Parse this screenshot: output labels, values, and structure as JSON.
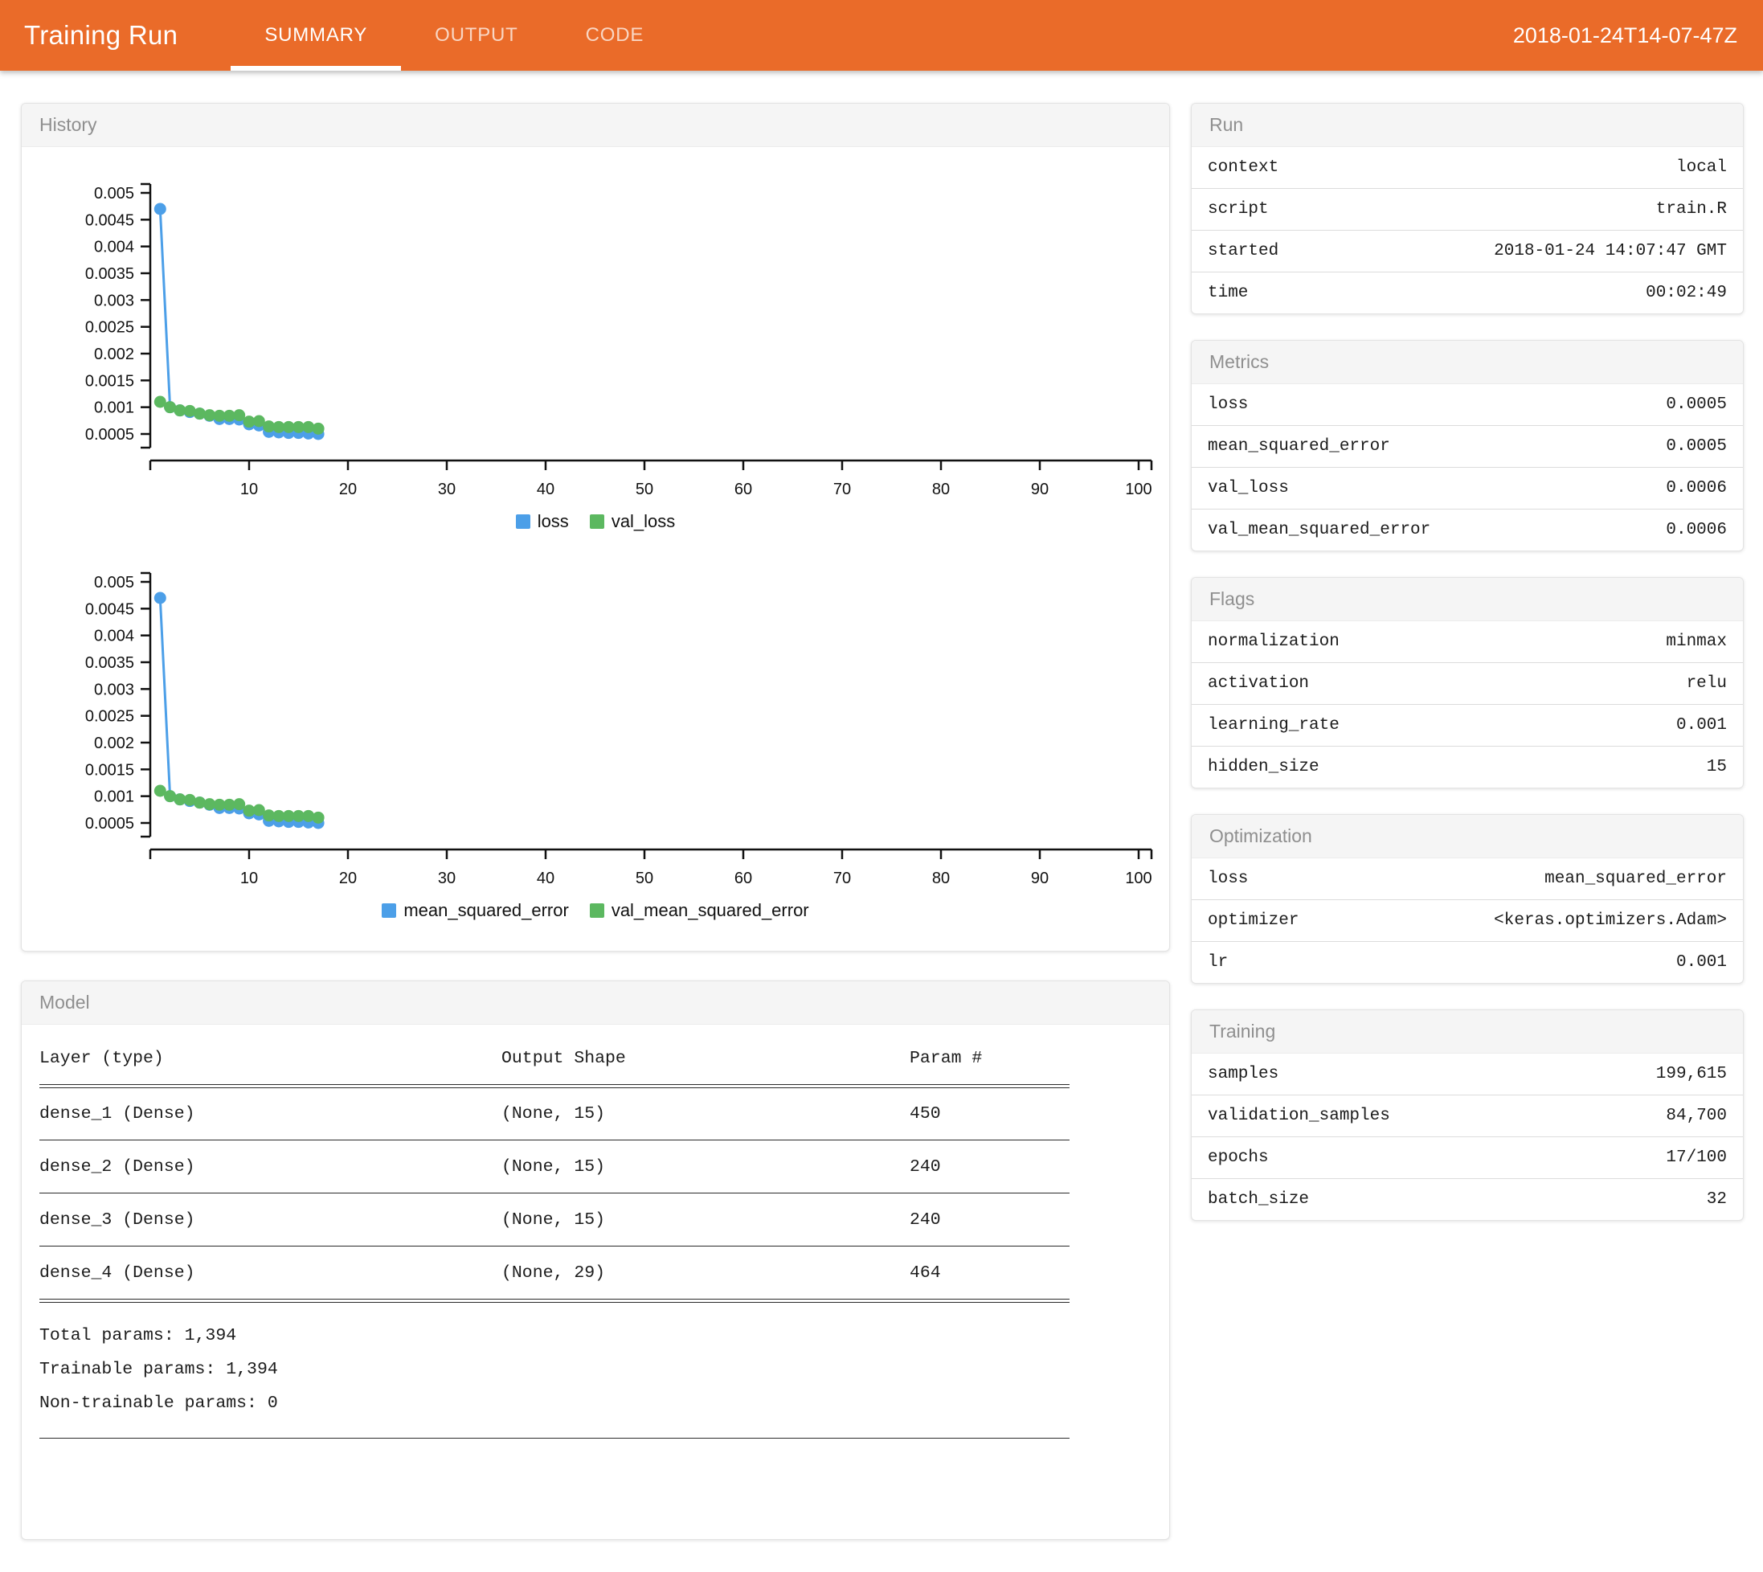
{
  "header": {
    "title": "Training Run",
    "tabs": [
      {
        "label": "SUMMARY",
        "active": true
      },
      {
        "label": "OUTPUT",
        "active": false
      },
      {
        "label": "CODE",
        "active": false
      }
    ],
    "timestamp": "2018-01-24T14-07-47Z"
  },
  "history_panel": {
    "title": "History"
  },
  "model_panel": {
    "title": "Model",
    "columns": [
      "Layer (type)",
      "Output Shape",
      "Param #"
    ],
    "rows": [
      [
        "dense_1 (Dense)",
        "(None, 15)",
        "450"
      ],
      [
        "dense_2 (Dense)",
        "(None, 15)",
        "240"
      ],
      [
        "dense_3 (Dense)",
        "(None, 15)",
        "240"
      ],
      [
        "dense_4 (Dense)",
        "(None, 29)",
        "464"
      ]
    ],
    "totals": [
      "Total params: 1,394",
      "Trainable params: 1,394",
      "Non-trainable params: 0"
    ]
  },
  "run_panel": {
    "title": "Run",
    "rows": [
      [
        "context",
        "local"
      ],
      [
        "script",
        "train.R"
      ],
      [
        "started",
        "2018-01-24 14:07:47 GMT"
      ],
      [
        "time",
        "00:02:49"
      ]
    ]
  },
  "metrics_panel": {
    "title": "Metrics",
    "rows": [
      [
        "loss",
        "0.0005"
      ],
      [
        "mean_squared_error",
        "0.0005"
      ],
      [
        "val_loss",
        "0.0006"
      ],
      [
        "val_mean_squared_error",
        "0.0006"
      ]
    ]
  },
  "flags_panel": {
    "title": "Flags",
    "rows": [
      [
        "normalization",
        "minmax"
      ],
      [
        "activation",
        "relu"
      ],
      [
        "learning_rate",
        "0.001"
      ],
      [
        "hidden_size",
        "15"
      ]
    ]
  },
  "optimization_panel": {
    "title": "Optimization",
    "rows": [
      [
        "loss",
        "mean_squared_error"
      ],
      [
        "optimizer",
        "<keras.optimizers.Adam>"
      ],
      [
        "lr",
        "0.001"
      ]
    ]
  },
  "training_panel": {
    "title": "Training",
    "rows": [
      [
        "samples",
        "199,615"
      ],
      [
        "validation_samples",
        "84,700"
      ],
      [
        "epochs",
        "17/100"
      ],
      [
        "batch_size",
        "32"
      ]
    ]
  },
  "chart_data": [
    {
      "type": "line",
      "title": "loss history",
      "x": [
        1,
        2,
        3,
        4,
        5,
        6,
        7,
        8,
        9,
        10,
        11,
        12,
        13,
        14,
        15,
        16,
        17
      ],
      "xlim": [
        0,
        100
      ],
      "ylim": [
        0.0005,
        0.005
      ],
      "xticks": [
        10,
        20,
        30,
        40,
        50,
        60,
        70,
        80,
        90,
        100
      ],
      "yticks": [
        0.005,
        0.0045,
        0.004,
        0.0035,
        0.003,
        0.0025,
        0.002,
        0.0015,
        0.001,
        0.0005
      ],
      "grid": false,
      "legend_position": "bottom",
      "series": [
        {
          "name": "loss",
          "color": "#4c9fe8",
          "values": [
            0.0047,
            0.001,
            0.00094,
            0.00091,
            0.00088,
            0.00084,
            0.00078,
            0.00078,
            0.00077,
            0.00068,
            0.00066,
            0.00054,
            0.00053,
            0.00052,
            0.00052,
            0.00051,
            0.0005
          ]
        },
        {
          "name": "val_loss",
          "color": "#5cb860",
          "values": [
            0.0011,
            0.001,
            0.00094,
            0.00093,
            0.00088,
            0.00085,
            0.00084,
            0.00084,
            0.00085,
            0.00073,
            0.00074,
            0.00064,
            0.00063,
            0.00063,
            0.00063,
            0.00063,
            0.0006
          ]
        }
      ]
    },
    {
      "type": "line",
      "title": "mean_squared_error history",
      "x": [
        1,
        2,
        3,
        4,
        5,
        6,
        7,
        8,
        9,
        10,
        11,
        12,
        13,
        14,
        15,
        16,
        17
      ],
      "xlim": [
        0,
        100
      ],
      "ylim": [
        0.0005,
        0.005
      ],
      "xticks": [
        10,
        20,
        30,
        40,
        50,
        60,
        70,
        80,
        90,
        100
      ],
      "yticks": [
        0.005,
        0.0045,
        0.004,
        0.0035,
        0.003,
        0.0025,
        0.002,
        0.0015,
        0.001,
        0.0005
      ],
      "grid": false,
      "legend_position": "bottom",
      "series": [
        {
          "name": "mean_squared_error",
          "color": "#4c9fe8",
          "values": [
            0.0047,
            0.001,
            0.00094,
            0.00091,
            0.00088,
            0.00084,
            0.00078,
            0.00078,
            0.00077,
            0.00068,
            0.00066,
            0.00054,
            0.00053,
            0.00052,
            0.00052,
            0.00051,
            0.0005
          ]
        },
        {
          "name": "val_mean_squared_error",
          "color": "#5cb860",
          "values": [
            0.0011,
            0.001,
            0.00094,
            0.00093,
            0.00088,
            0.00085,
            0.00084,
            0.00084,
            0.00085,
            0.00073,
            0.00074,
            0.00064,
            0.00063,
            0.00063,
            0.00063,
            0.00063,
            0.0006
          ]
        }
      ]
    }
  ]
}
